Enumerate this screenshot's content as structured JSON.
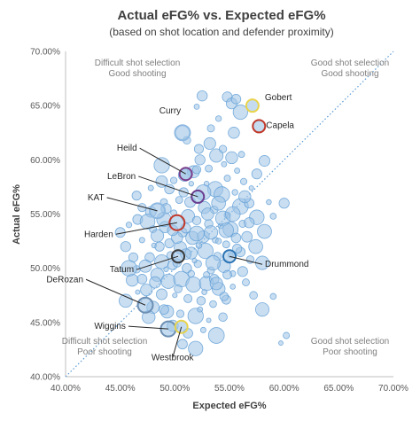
{
  "chart_data": {
    "type": "scatter",
    "title": "Actual eFG% vs. Expected eFG%",
    "subtitle": "(based on shot location and defender proximity)",
    "xlabel": "Expected eFG%",
    "ylabel": "Actual eFG%",
    "xlim": [
      0.4,
      0.7
    ],
    "ylim": [
      0.4,
      0.7
    ],
    "x_ticks": [
      {
        "value": 0.4,
        "label": "40.00%"
      },
      {
        "value": 0.45,
        "label": "45.00%"
      },
      {
        "value": 0.5,
        "label": "50.00%"
      },
      {
        "value": 0.55,
        "label": "55.00%"
      },
      {
        "value": 0.6,
        "label": "60.00%"
      },
      {
        "value": 0.65,
        "label": "65.00%"
      },
      {
        "value": 0.7,
        "label": "70.00%"
      }
    ],
    "y_ticks": [
      {
        "value": 0.4,
        "label": "40.00%"
      },
      {
        "value": 0.45,
        "label": "45.00%"
      },
      {
        "value": 0.5,
        "label": "50.00%"
      },
      {
        "value": 0.55,
        "label": "55.00%"
      },
      {
        "value": 0.6,
        "label": "60.00%"
      },
      {
        "value": 0.65,
        "label": "65.00%"
      },
      {
        "value": 0.7,
        "label": "70.00%"
      }
    ],
    "grid": false,
    "reference_line": "y = x (dotted)",
    "quadrant_labels": [
      {
        "position": "top-left",
        "lines": [
          "Difficult shot selection",
          "Good shooting"
        ]
      },
      {
        "position": "top-right",
        "lines": [
          "Good shot selection",
          "Good shooting"
        ]
      },
      {
        "position": "bottom-left",
        "lines": [
          "Difficult shot selection",
          "Poor shooting"
        ]
      },
      {
        "position": "bottom-right",
        "lines": [
          "Good shot selection",
          "Poor shooting"
        ]
      }
    ],
    "highlighted_players": [
      {
        "name": "Gobert",
        "x": 0.571,
        "y": 0.65,
        "ring_color": "#e8d44d",
        "label_side": "right"
      },
      {
        "name": "Capela",
        "x": 0.577,
        "y": 0.631,
        "ring_color": "#c0392b",
        "label_side": "right"
      },
      {
        "name": "Curry",
        "x": 0.507,
        "y": 0.625,
        "ring_color": "#8eb9e2",
        "label_side": "left"
      },
      {
        "name": "Heild",
        "x": 0.51,
        "y": 0.587,
        "ring_color": "#7b3f8c",
        "label_side": "left"
      },
      {
        "name": "LeBron",
        "x": 0.521,
        "y": 0.566,
        "ring_color": "#6a3d8f",
        "label_side": "left"
      },
      {
        "name": "KAT",
        "x": 0.484,
        "y": 0.553,
        "ring_color": "#8eb9e2",
        "label_side": "left"
      },
      {
        "name": "Harden",
        "x": 0.502,
        "y": 0.542,
        "ring_color": "#c0392b",
        "label_side": "left"
      },
      {
        "name": "Tatum",
        "x": 0.503,
        "y": 0.511,
        "ring_color": "#3a3a3a",
        "label_side": "left"
      },
      {
        "name": "Drummond",
        "x": 0.55,
        "y": 0.511,
        "ring_color": "#2e75b6",
        "label_side": "right"
      },
      {
        "name": "DeRozan",
        "x": 0.473,
        "y": 0.466,
        "ring_color": "#6d8fb3",
        "label_side": "left"
      },
      {
        "name": "Wiggins",
        "x": 0.494,
        "y": 0.444,
        "ring_color": "#6d8fb3",
        "label_side": "left"
      },
      {
        "name": "Westbrook",
        "x": 0.506,
        "y": 0.446,
        "ring_color": "#e8d44d",
        "label_side": "below"
      }
    ],
    "series": [
      {
        "points": [
          [
            0.548,
            0.658
          ],
          [
            0.552,
            0.652
          ],
          [
            0.54,
            0.638
          ],
          [
            0.533,
            0.629
          ],
          [
            0.556,
            0.656
          ],
          [
            0.525,
            0.659
          ],
          [
            0.52,
            0.649
          ],
          [
            0.56,
            0.644
          ],
          [
            0.554,
            0.625
          ],
          [
            0.522,
            0.61
          ],
          [
            0.511,
            0.618
          ],
          [
            0.538,
            0.604
          ],
          [
            0.552,
            0.602
          ],
          [
            0.545,
            0.596
          ],
          [
            0.523,
            0.6
          ],
          [
            0.531,
            0.592
          ],
          [
            0.517,
            0.589
          ],
          [
            0.561,
            0.605
          ],
          [
            0.582,
            0.599
          ],
          [
            0.575,
            0.587
          ],
          [
            0.563,
            0.58
          ],
          [
            0.529,
            0.578
          ],
          [
            0.537,
            0.573
          ],
          [
            0.543,
            0.568
          ],
          [
            0.555,
            0.57
          ],
          [
            0.495,
            0.573
          ],
          [
            0.488,
            0.595
          ],
          [
            0.499,
            0.581
          ],
          [
            0.508,
            0.57
          ],
          [
            0.514,
            0.561
          ],
          [
            0.527,
            0.556
          ],
          [
            0.536,
            0.554
          ],
          [
            0.548,
            0.549
          ],
          [
            0.56,
            0.557
          ],
          [
            0.568,
            0.56
          ],
          [
            0.49,
            0.561
          ],
          [
            0.478,
            0.552
          ],
          [
            0.47,
            0.556
          ],
          [
            0.499,
            0.551
          ],
          [
            0.512,
            0.548
          ],
          [
            0.52,
            0.544
          ],
          [
            0.531,
            0.541
          ],
          [
            0.542,
            0.539
          ],
          [
            0.551,
            0.536
          ],
          [
            0.562,
            0.541
          ],
          [
            0.575,
            0.547
          ],
          [
            0.466,
            0.545
          ],
          [
            0.48,
            0.536
          ],
          [
            0.491,
            0.538
          ],
          [
            0.507,
            0.533
          ],
          [
            0.516,
            0.528
          ],
          [
            0.526,
            0.529
          ],
          [
            0.537,
            0.526
          ],
          [
            0.547,
            0.522
          ],
          [
            0.556,
            0.528
          ],
          [
            0.47,
            0.526
          ],
          [
            0.481,
            0.521
          ],
          [
            0.495,
            0.523
          ],
          [
            0.505,
            0.519
          ],
          [
            0.515,
            0.514
          ],
          [
            0.528,
            0.516
          ],
          [
            0.539,
            0.511
          ],
          [
            0.56,
            0.515
          ],
          [
            0.455,
            0.52
          ],
          [
            0.477,
            0.51
          ],
          [
            0.488,
            0.506
          ],
          [
            0.498,
            0.503
          ],
          [
            0.511,
            0.5
          ],
          [
            0.521,
            0.504
          ],
          [
            0.533,
            0.498
          ],
          [
            0.545,
            0.502
          ],
          [
            0.553,
            0.495
          ],
          [
            0.465,
            0.499
          ],
          [
            0.484,
            0.494
          ],
          [
            0.494,
            0.488
          ],
          [
            0.506,
            0.49
          ],
          [
            0.517,
            0.485
          ],
          [
            0.529,
            0.486
          ],
          [
            0.54,
            0.481
          ],
          [
            0.474,
            0.48
          ],
          [
            0.488,
            0.476
          ],
          [
            0.5,
            0.475
          ],
          [
            0.512,
            0.472
          ],
          [
            0.524,
            0.47
          ],
          [
            0.535,
            0.467
          ],
          [
            0.547,
            0.471
          ],
          [
            0.48,
            0.464
          ],
          [
            0.493,
            0.46
          ],
          [
            0.505,
            0.458
          ],
          [
            0.519,
            0.456
          ],
          [
            0.531,
            0.452
          ],
          [
            0.544,
            0.455
          ],
          [
            0.498,
            0.447
          ],
          [
            0.512,
            0.44
          ],
          [
            0.526,
            0.443
          ],
          [
            0.538,
            0.438
          ],
          [
            0.507,
            0.43
          ],
          [
            0.519,
            0.426
          ],
          [
            0.502,
            0.528
          ],
          [
            0.51,
            0.537
          ],
          [
            0.522,
            0.521
          ],
          [
            0.533,
            0.533
          ],
          [
            0.544,
            0.546
          ],
          [
            0.496,
            0.512
          ],
          [
            0.518,
            0.507
          ],
          [
            0.529,
            0.494
          ],
          [
            0.484,
            0.53
          ],
          [
            0.473,
            0.502
          ],
          [
            0.461,
            0.489
          ],
          [
            0.49,
            0.545
          ],
          [
            0.504,
            0.563
          ],
          [
            0.54,
            0.56
          ],
          [
            0.548,
            0.583
          ],
          [
            0.515,
            0.578
          ],
          [
            0.557,
            0.59
          ],
          [
            0.57,
            0.574
          ],
          [
            0.566,
            0.529
          ],
          [
            0.574,
            0.52
          ],
          [
            0.582,
            0.534
          ],
          [
            0.59,
            0.548
          ],
          [
            0.6,
            0.56
          ],
          [
            0.586,
            0.561
          ],
          [
            0.569,
            0.508
          ],
          [
            0.562,
            0.497
          ],
          [
            0.553,
            0.483
          ],
          [
            0.545,
            0.474
          ],
          [
            0.565,
            0.487
          ],
          [
            0.572,
            0.475
          ],
          [
            0.58,
            0.462
          ],
          [
            0.59,
            0.474
          ],
          [
            0.602,
            0.438
          ],
          [
            0.597,
            0.431
          ],
          [
            0.488,
            0.58
          ],
          [
            0.478,
            0.574
          ],
          [
            0.465,
            0.567
          ],
          [
            0.458,
            0.54
          ],
          [
            0.45,
            0.533
          ],
          [
            0.462,
            0.51
          ],
          [
            0.466,
            0.478
          ],
          [
            0.455,
            0.47
          ],
          [
            0.49,
            0.462
          ],
          [
            0.476,
            0.455
          ],
          [
            0.52,
            0.591
          ],
          [
            0.526,
            0.57
          ],
          [
            0.509,
            0.586
          ],
          [
            0.532,
            0.615
          ],
          [
            0.544,
            0.61
          ],
          [
            0.502,
            0.505
          ],
          [
            0.523,
            0.462
          ],
          [
            0.535,
            0.505
          ],
          [
            0.551,
            0.512
          ],
          [
            0.527,
            0.478
          ],
          [
            0.515,
            0.495
          ],
          [
            0.503,
            0.481
          ],
          [
            0.492,
            0.499
          ],
          [
            0.482,
            0.487
          ],
          [
            0.536,
            0.49
          ],
          [
            0.548,
            0.494
          ],
          [
            0.51,
            0.513
          ],
          [
            0.52,
            0.532
          ],
          [
            0.498,
            0.535
          ],
          [
            0.486,
            0.52
          ],
          [
            0.54,
            0.525
          ],
          [
            0.553,
            0.55
          ],
          [
            0.564,
            0.566
          ],
          [
            0.492,
            0.555
          ],
          [
            0.475,
            0.543
          ],
          [
            0.53,
            0.55
          ],
          [
            0.47,
            0.49
          ],
          [
            0.458,
            0.5
          ],
          [
            0.547,
            0.535
          ],
          [
            0.557,
            0.518
          ],
          [
            0.568,
            0.542
          ],
          [
            0.538,
            0.486
          ],
          [
            0.58,
            0.505
          ]
        ]
      }
    ]
  }
}
